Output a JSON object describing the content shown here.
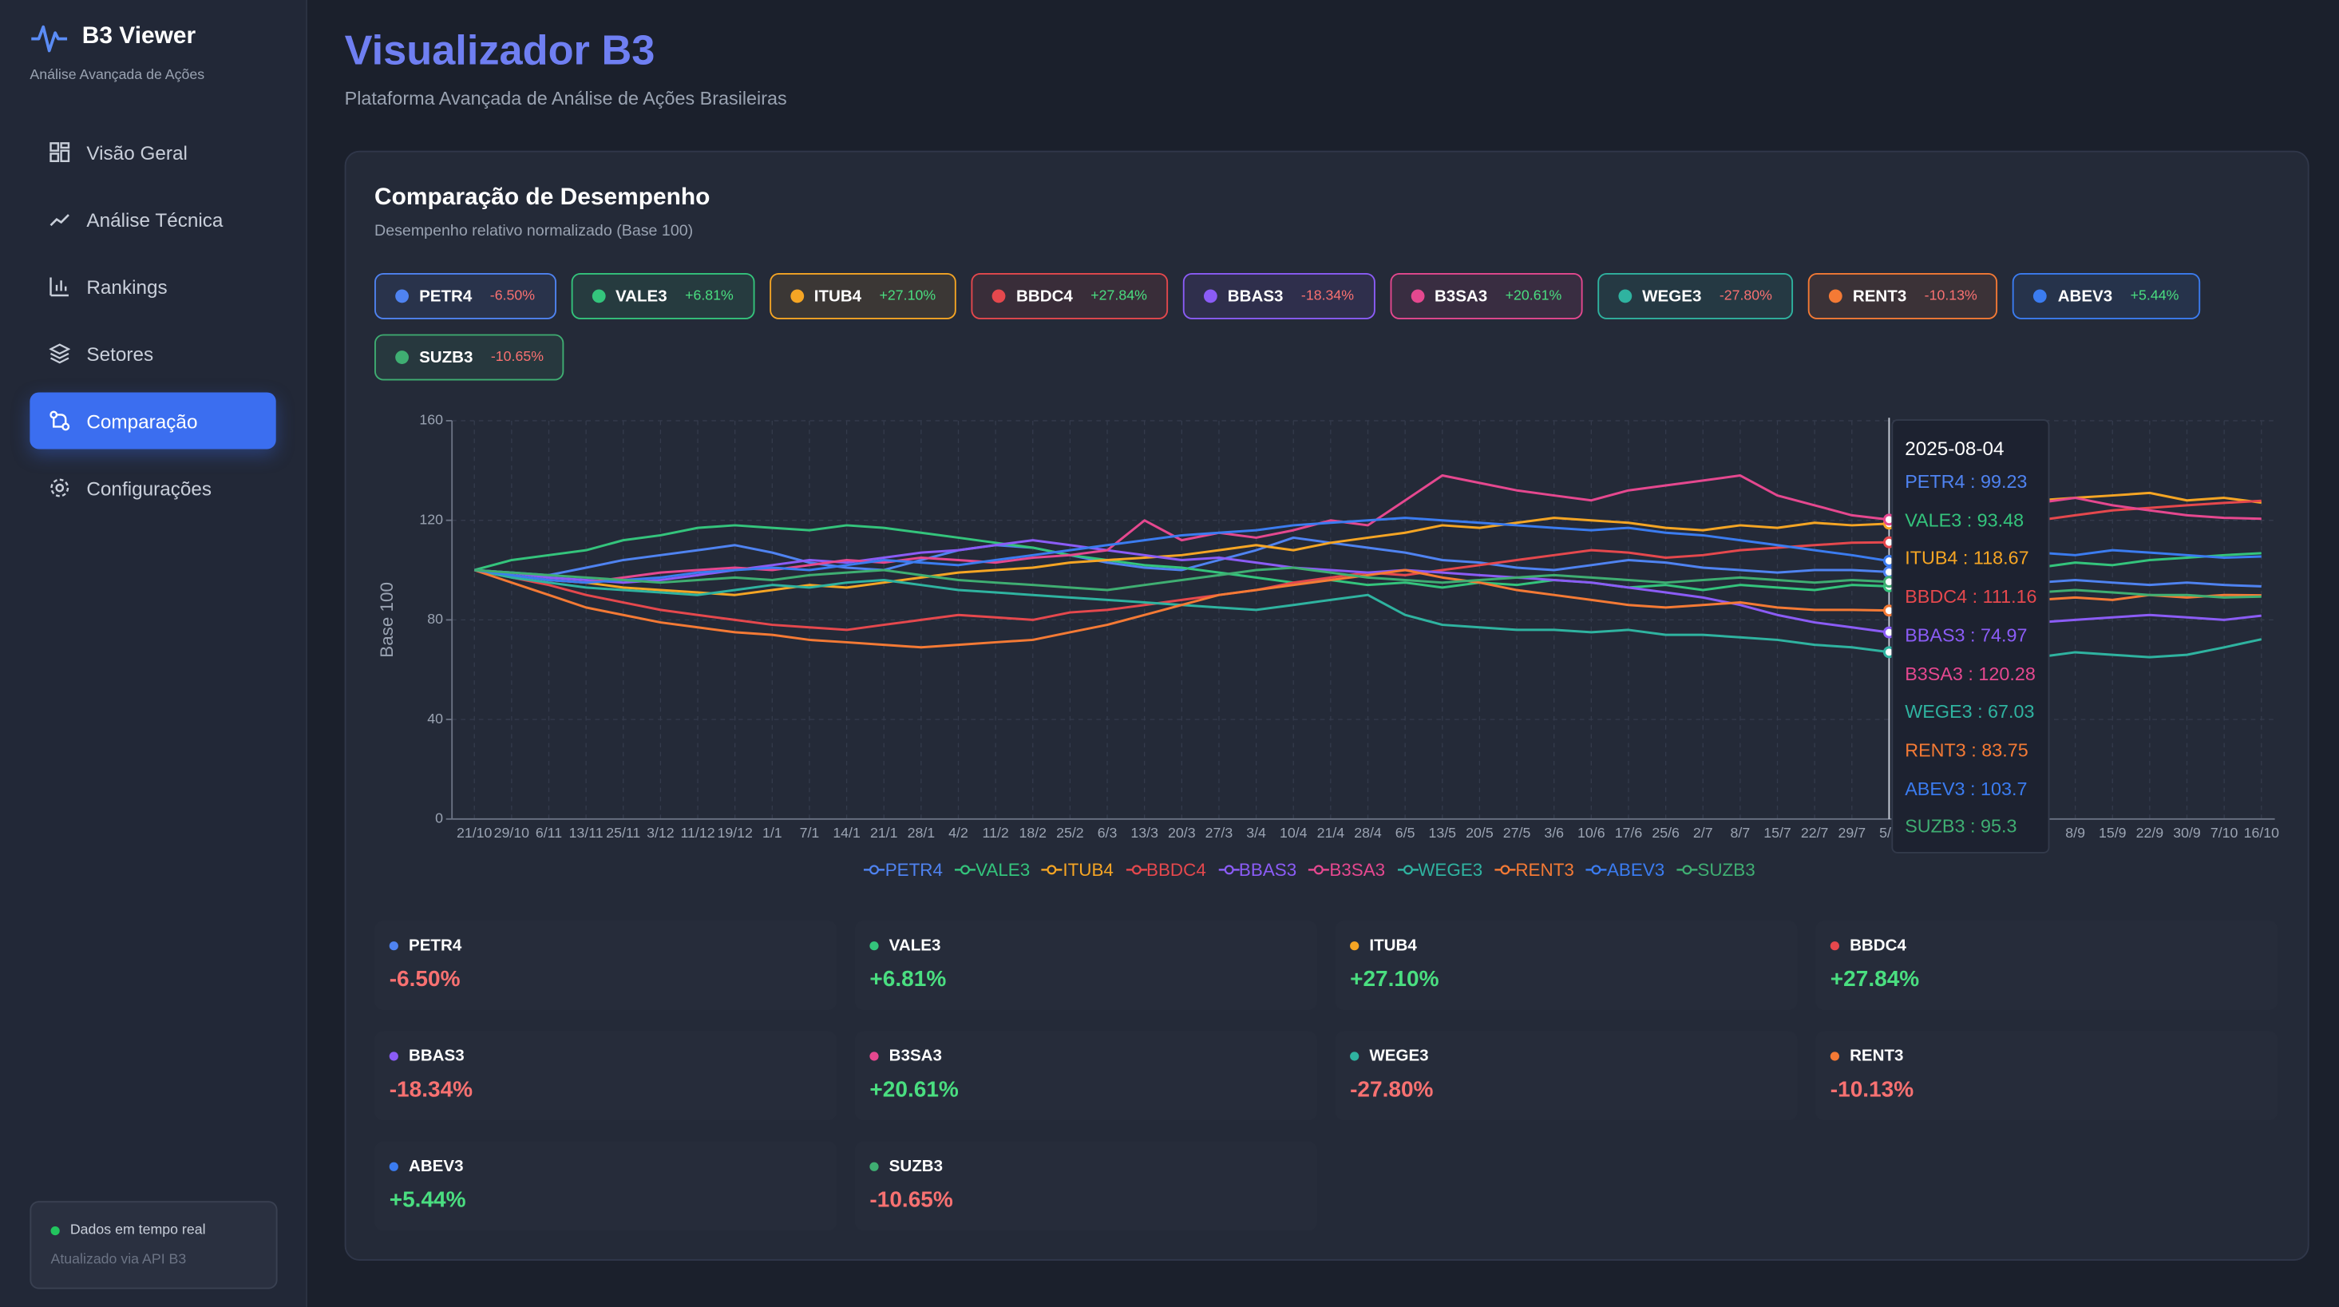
{
  "sidebar": {
    "brand": "B3 Viewer",
    "tagline": "Análise Avançada de Ações",
    "nav": [
      "Visão Geral",
      "Análise Técnica",
      "Rankings",
      "Setores",
      "Comparação",
      "Configurações"
    ],
    "status": {
      "label": "Dados em tempo real",
      "source": "Atualizado via API B3"
    }
  },
  "header": {
    "title": "Visualizador B3",
    "subtitle": "Plataforma Avançada de Análise de Ações Brasileiras"
  },
  "comparison": {
    "title": "Comparação de Desempenho",
    "subtitle": "Desempenho relativo normalizado (Base 100)",
    "chart": {
      "type": "line",
      "y_label": "Base 100",
      "ylim": [
        0,
        160
      ],
      "yticks": [
        0,
        40,
        80,
        120,
        160
      ],
      "grid": true,
      "categories": [
        "21/10",
        "29/10",
        "6/11",
        "13/11",
        "25/11",
        "3/12",
        "11/12",
        "19/12",
        "1/1",
        "7/1",
        "14/1",
        "21/1",
        "28/1",
        "4/2",
        "11/2",
        "18/2",
        "25/2",
        "6/3",
        "13/3",
        "20/3",
        "27/3",
        "3/4",
        "10/4",
        "21/4",
        "28/4",
        "6/5",
        "13/5",
        "20/5",
        "27/5",
        "3/6",
        "10/6",
        "17/6",
        "25/6",
        "2/7",
        "8/7",
        "15/7",
        "22/7",
        "29/7",
        "5/8",
        null,
        null,
        null,
        null,
        "8/9",
        "15/9",
        "22/9",
        "30/9",
        "7/10",
        "16/10"
      ],
      "series": [
        {
          "name": "PETR4",
          "color": "#4f83f1",
          "change": "-6.50%",
          "values": [
            100,
            99,
            98,
            101,
            104,
            106,
            108,
            110,
            107,
            103,
            101,
            100,
            104,
            108,
            110,
            109,
            106,
            103,
            101,
            100,
            104,
            108,
            113,
            111,
            109,
            107,
            104,
            103,
            101,
            100,
            102,
            104,
            103,
            101,
            100,
            99,
            100,
            100,
            99.23,
            98,
            97,
            96,
            95,
            96,
            95,
            94,
            95,
            94,
            93.5
          ]
        },
        {
          "name": "VALE3",
          "color": "#34c47c",
          "change": "+6.81%",
          "values": [
            100,
            104,
            106,
            108,
            112,
            114,
            117,
            118,
            117,
            116,
            118,
            117,
            115,
            113,
            111,
            109,
            106,
            104,
            102,
            101,
            99,
            97,
            95,
            96,
            94,
            95,
            93,
            95,
            94,
            96,
            95,
            93,
            94,
            92,
            94,
            93,
            92,
            94,
            93.48,
            95,
            97,
            99,
            101,
            103,
            102,
            104,
            105,
            106,
            106.81
          ]
        },
        {
          "name": "ITUB4",
          "color": "#f5a524",
          "change": "+27.10%",
          "values": [
            100,
            98,
            96,
            95,
            93,
            92,
            91,
            90,
            92,
            94,
            93,
            95,
            97,
            99,
            100,
            101,
            103,
            104,
            105,
            106,
            108,
            110,
            108,
            111,
            113,
            115,
            118,
            117,
            119,
            121,
            120,
            119,
            117,
            116,
            118,
            117,
            119,
            118,
            118.67,
            121,
            124,
            126,
            128,
            129,
            130,
            131,
            128,
            129,
            127.1
          ]
        },
        {
          "name": "BBDC4",
          "color": "#e5484d",
          "change": "+27.84%",
          "values": [
            100,
            97,
            94,
            90,
            87,
            84,
            82,
            80,
            78,
            77,
            76,
            78,
            80,
            82,
            81,
            80,
            83,
            84,
            86,
            88,
            90,
            92,
            95,
            97,
            99,
            98,
            100,
            102,
            104,
            106,
            108,
            107,
            105,
            106,
            108,
            109,
            110,
            111,
            111.16,
            113,
            116,
            118,
            120,
            122,
            124,
            125,
            126,
            127,
            127.84
          ]
        },
        {
          "name": "BBAS3",
          "color": "#8b5cf6",
          "change": "-18.34%",
          "values": [
            100,
            99,
            97,
            96,
            95,
            96,
            98,
            100,
            102,
            104,
            103,
            105,
            107,
            108,
            110,
            112,
            110,
            108,
            106,
            104,
            105,
            103,
            101,
            100,
            99,
            100,
            99,
            98,
            97,
            96,
            95,
            93,
            91,
            89,
            86,
            82,
            79,
            77,
            74.97,
            76,
            77,
            78,
            79,
            80,
            81,
            82,
            81,
            80,
            81.66
          ]
        },
        {
          "name": "B3SA3",
          "color": "#e5488f",
          "change": "+20.61%",
          "values": [
            100,
            98,
            96,
            95,
            97,
            99,
            100,
            101,
            100,
            102,
            104,
            103,
            105,
            104,
            103,
            105,
            106,
            108,
            120,
            112,
            115,
            113,
            116,
            120,
            118,
            128,
            138,
            135,
            132,
            130,
            128,
            132,
            134,
            136,
            138,
            130,
            126,
            122,
            120.28,
            124,
            126,
            128,
            127,
            129,
            126,
            124,
            122,
            121,
            120.61
          ]
        },
        {
          "name": "WEGE3",
          "color": "#2fb3a0",
          "change": "-27.80%",
          "values": [
            100,
            97,
            95,
            93,
            92,
            91,
            90,
            92,
            94,
            93,
            95,
            96,
            94,
            92,
            91,
            90,
            89,
            88,
            87,
            86,
            85,
            84,
            86,
            88,
            90,
            82,
            78,
            77,
            76,
            76,
            75,
            76,
            74,
            74,
            73,
            72,
            70,
            69,
            67.03,
            68,
            67,
            66,
            65,
            67,
            66,
            65,
            66,
            69,
            72.2
          ]
        },
        {
          "name": "RENT3",
          "color": "#f47a35",
          "change": "-10.13%",
          "values": [
            100,
            95,
            90,
            85,
            82,
            79,
            77,
            75,
            74,
            72,
            71,
            70,
            69,
            70,
            71,
            72,
            75,
            78,
            82,
            86,
            90,
            92,
            94,
            96,
            98,
            100,
            97,
            95,
            92,
            90,
            88,
            86,
            85,
            86,
            87,
            85,
            84,
            84,
            83.75,
            85,
            86,
            87,
            88,
            89,
            88,
            90,
            89,
            90,
            89.87
          ]
        },
        {
          "name": "ABEV3",
          "color": "#3b7cf0",
          "change": "+5.44%",
          "values": [
            100,
            98,
            96,
            95,
            96,
            97,
            99,
            100,
            101,
            100,
            102,
            104,
            103,
            102,
            104,
            106,
            108,
            110,
            112,
            114,
            115,
            116,
            118,
            119,
            120,
            121,
            120,
            119,
            118,
            117,
            116,
            117,
            115,
            114,
            112,
            110,
            108,
            106,
            103.7,
            105,
            107,
            108,
            107,
            106,
            108,
            107,
            106,
            105,
            105.44
          ]
        },
        {
          "name": "SUZB3",
          "color": "#3fae72",
          "change": "-10.65%",
          "values": [
            100,
            99,
            98,
            97,
            96,
            95,
            96,
            97,
            96,
            98,
            99,
            100,
            98,
            96,
            95,
            94,
            93,
            92,
            94,
            96,
            98,
            100,
            101,
            99,
            97,
            96,
            95,
            96,
            97,
            98,
            97,
            96,
            95,
            96,
            97,
            96,
            95,
            96,
            95.3,
            94,
            93,
            92,
            91,
            92,
            91,
            90,
            90,
            89,
            89.35
          ]
        }
      ],
      "tooltip": {
        "date": "2025-08-04",
        "separator": " : "
      }
    }
  }
}
